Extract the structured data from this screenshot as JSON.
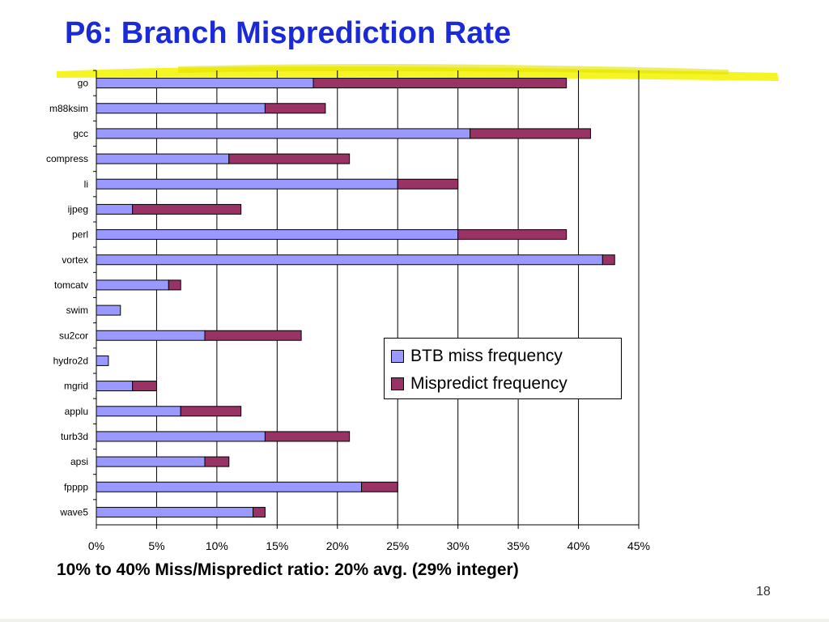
{
  "slide": {
    "title": "P6: Branch Misprediction Rate",
    "footnote": "10% to 40% Miss/Mispredict ratio: 20% avg. (29% integer)",
    "page_number": "18"
  },
  "colors": {
    "title": "#1a2ad6",
    "highlight": "#f3f300",
    "btb": "#9999ff",
    "mispredict": "#993366"
  },
  "chart_data": {
    "type": "bar",
    "orientation": "horizontal",
    "stacked": true,
    "categories": [
      "go",
      "m88ksim",
      "gcc",
      "compress",
      "li",
      "ijpeg",
      "perl",
      "vortex",
      "tomcatv",
      "swim",
      "su2cor",
      "hydro2d",
      "mgrid",
      "applu",
      "turb3d",
      "apsi",
      "fpppp",
      "wave5"
    ],
    "series": [
      {
        "name": "BTB miss frequency",
        "values": [
          18,
          14,
          31,
          11,
          25,
          3,
          30,
          42,
          6,
          2,
          9,
          1,
          3,
          7,
          14,
          9,
          22,
          13
        ]
      },
      {
        "name": "Mispredict frequency",
        "values": [
          21,
          5,
          10,
          10,
          5,
          9,
          9,
          1,
          1,
          0,
          8,
          0,
          2,
          5,
          7,
          2,
          3,
          1
        ]
      }
    ],
    "xlim": [
      0,
      45
    ],
    "xticks": [
      "0%",
      "5%",
      "10%",
      "15%",
      "20%",
      "25%",
      "30%",
      "35%",
      "40%",
      "45%"
    ],
    "xtick_values": [
      0,
      5,
      10,
      15,
      20,
      25,
      30,
      35,
      40,
      45
    ],
    "grid": true,
    "legend_position": "right"
  }
}
